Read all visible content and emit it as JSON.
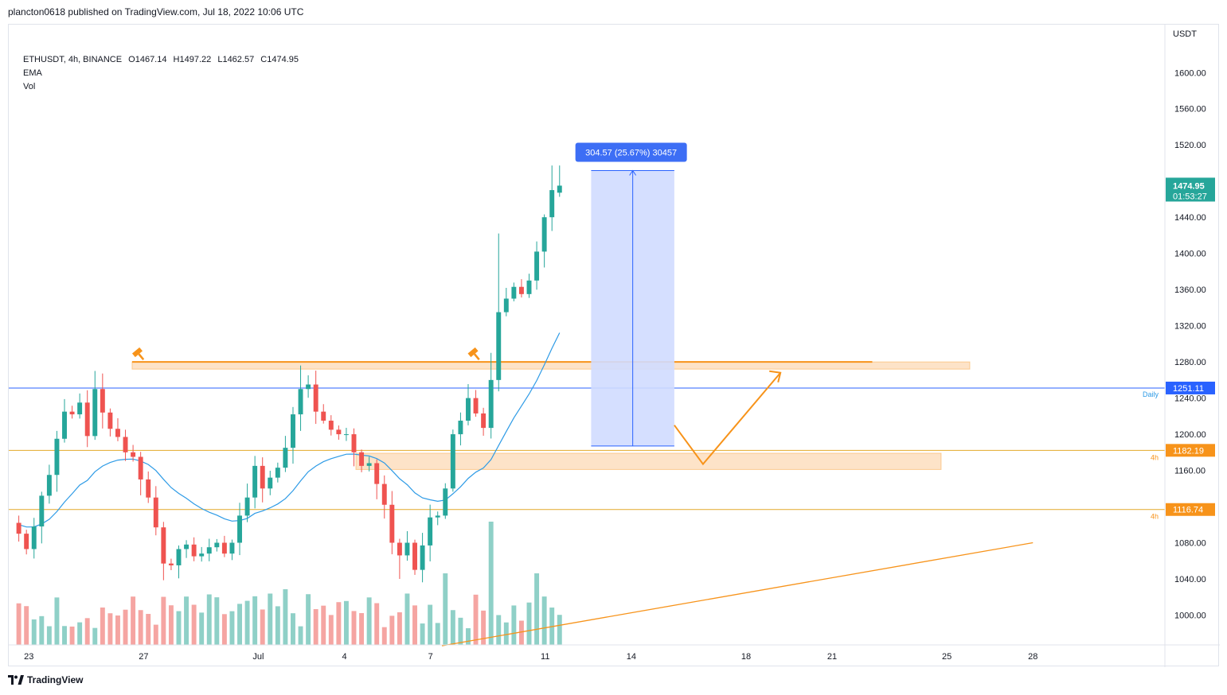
{
  "header": {
    "publisher": "plancton0618 published on TradingView.com, Jul 18, 2022 10:06 UTC"
  },
  "legend": {
    "symbol": "ETHUSDT, 4h, BINANCE",
    "open": "O1467.14",
    "high": "H1497.22",
    "low": "L1462.57",
    "close": "C1474.95",
    "indicators": [
      "EMA",
      "Vol"
    ]
  },
  "footer": {
    "brand": "TradingView"
  },
  "colors": {
    "up": "#26a69a",
    "down": "#ef5350",
    "vol_up": "#8fd0c7",
    "vol_down": "#f5a5a2",
    "ema": "#2e9be6",
    "orange": "#f7931a",
    "blue_line": "#2962ff",
    "measure_fill": "#d0dcff",
    "measure_label": "#3d6ef5",
    "zone": "#fcd9b6"
  },
  "chart_data": {
    "type": "candlestick",
    "price_axis": {
      "unit_label": "USDT",
      "ticks": [
        1000,
        1040,
        1080,
        1120,
        1160,
        1200,
        1240,
        1280,
        1320,
        1360,
        1400,
        1440,
        1480,
        1520,
        1560,
        1600
      ],
      "tick_labels": [
        "1000.00",
        "1040.00",
        "1080.00",
        "1120.00",
        "1160.00",
        "1200.00",
        "1240.00",
        "1280.00",
        "1320.00",
        "1360.00",
        "1400.00",
        "1440.00",
        "1480.00",
        "1520.00",
        "1560.00",
        "1600.00"
      ],
      "range": [
        967,
        1653
      ]
    },
    "time_axis": {
      "labels": [
        "23",
        "27",
        "Jul",
        "4",
        "7",
        "11",
        "14",
        "18",
        "21",
        "25",
        "28"
      ],
      "label_days": [
        0,
        4,
        8,
        11,
        14,
        18,
        21,
        25,
        28,
        32,
        35
      ],
      "range_days": [
        -0.7,
        39.6
      ]
    },
    "candles_summary": {
      "closes": [
        1090,
        1073,
        1098,
        1132,
        1155,
        1195,
        1225,
        1222,
        1235,
        1198,
        1250,
        1224,
        1206,
        1197,
        1180,
        1175,
        1150,
        1130,
        1097,
        1057,
        1055,
        1073,
        1078,
        1065,
        1068,
        1075,
        1080,
        1068,
        1080,
        1110,
        1130,
        1165,
        1140,
        1152,
        1163,
        1185,
        1222,
        1250,
        1255,
        1225,
        1215,
        1205,
        1200,
        1200,
        1180,
        1165,
        1168,
        1145,
        1122,
        1080,
        1066,
        1080,
        1050,
        1077,
        1108,
        1110,
        1140,
        1200,
        1215,
        1240,
        1223,
        1207,
        1260,
        1335,
        1350,
        1363,
        1355,
        1370,
        1402,
        1440,
        1470,
        1475
      ],
      "note": "approximate 4h closes read from the chart"
    },
    "last_price": {
      "value": 1474.95,
      "label": "1474.95",
      "countdown": "01:53:27"
    },
    "levels": [
      {
        "value": 1251.11,
        "label": "1251.11",
        "tag": "Daily"
      },
      {
        "value": 1182.19,
        "label": "1182.19",
        "tag": "4h"
      },
      {
        "value": 1116.74,
        "label": "1116.74",
        "tag": "4h"
      }
    ],
    "zones": [
      {
        "low": 1272,
        "high": 1280
      },
      {
        "low": 1161,
        "high": 1179
      }
    ],
    "measure": {
      "label": "304.57 (25.67%) 30457",
      "from": 1187,
      "to": 1491.6
    },
    "ema_period_note": "EMA shown without length",
    "legend_placement": "top-left",
    "grid": false
  }
}
